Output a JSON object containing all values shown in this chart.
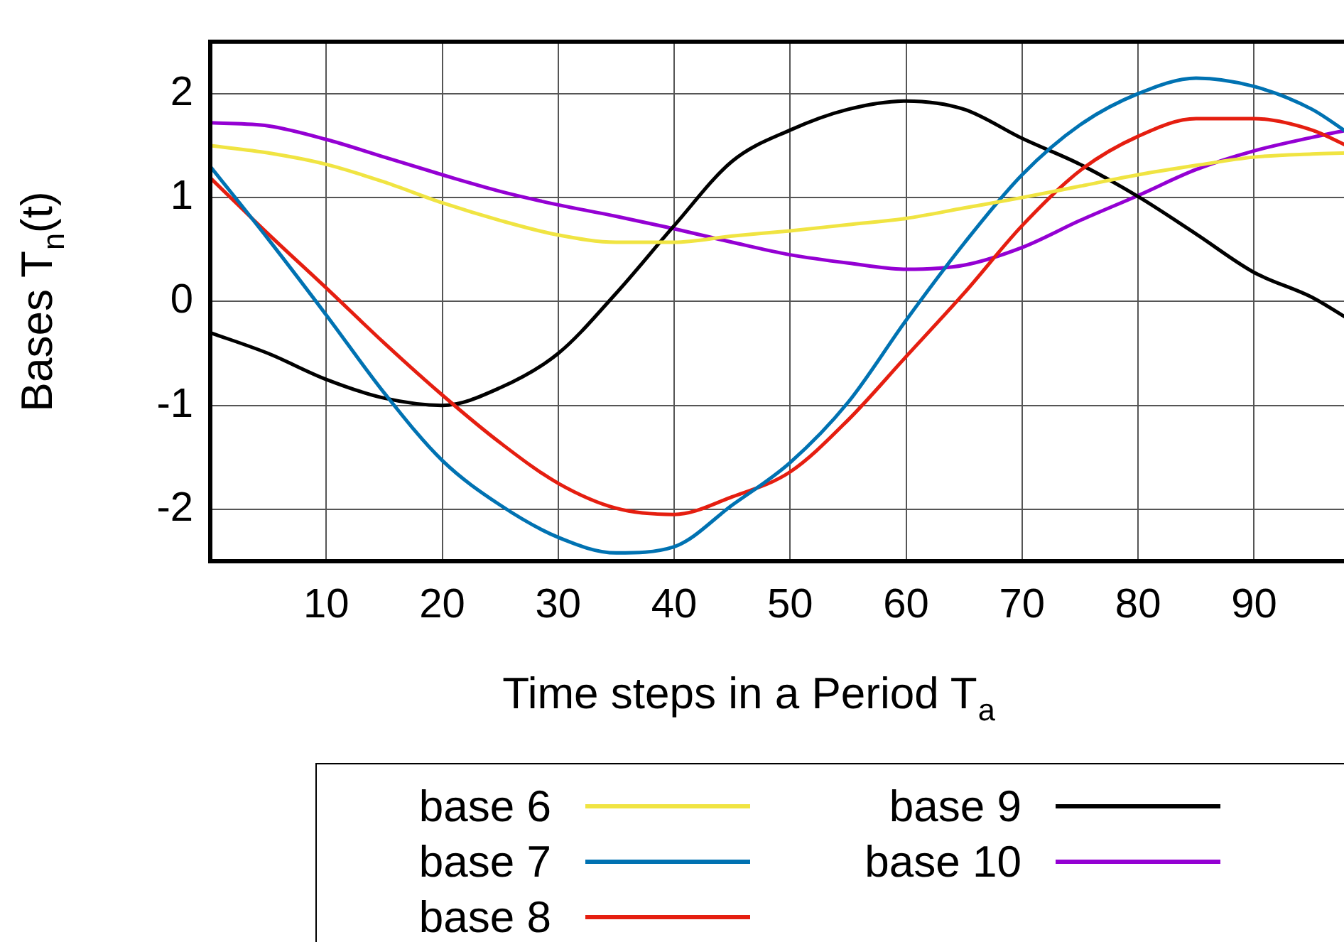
{
  "chart_data": {
    "type": "line",
    "xlabel": "Time steps in a Period T$_{a}$",
    "ylabel": "Bases T$_{n}$(t)",
    "x": [
      0,
      5,
      10,
      15,
      20,
      25,
      30,
      35,
      40,
      45,
      50,
      55,
      60,
      65,
      70,
      75,
      80,
      85,
      90,
      95,
      98
    ],
    "xlim": [
      0,
      98
    ],
    "xticks": [
      10,
      20,
      30,
      40,
      50,
      60,
      70,
      80,
      90
    ],
    "ylim": [
      -2.5,
      2.5
    ],
    "yticks": [
      -2,
      -1,
      0,
      1,
      2
    ],
    "grid": true,
    "legend": "bottom",
    "line_style": "solid",
    "marker": "none",
    "series": [
      {
        "name": "base 6",
        "color": "#f0e442",
        "values": [
          1.5,
          1.43,
          1.32,
          1.15,
          0.95,
          0.78,
          0.64,
          0.57,
          0.57,
          0.63,
          0.68,
          0.74,
          0.8,
          0.9,
          1.0,
          1.11,
          1.22,
          1.31,
          1.39,
          1.42,
          1.43
        ]
      },
      {
        "name": "base 7",
        "color": "#0072b2",
        "values": [
          1.3,
          0.6,
          -0.13,
          -0.88,
          -1.53,
          -1.96,
          -2.27,
          -2.42,
          -2.36,
          -1.96,
          -1.55,
          -0.97,
          -0.18,
          0.56,
          1.22,
          1.7,
          2.0,
          2.15,
          2.07,
          1.85,
          1.63
        ]
      },
      {
        "name": "base 8",
        "color": "#e51e10",
        "values": [
          1.19,
          0.65,
          0.13,
          -0.4,
          -0.9,
          -1.36,
          -1.75,
          -1.99,
          -2.05,
          -1.88,
          -1.64,
          -1.14,
          -0.53,
          0.08,
          0.73,
          1.26,
          1.59,
          1.76,
          1.76,
          1.65,
          1.5
        ]
      },
      {
        "name": "base 9",
        "color": "#000000",
        "values": [
          -0.3,
          -0.5,
          -0.75,
          -0.93,
          -1.0,
          -0.83,
          -0.5,
          0.08,
          0.73,
          1.35,
          1.65,
          1.85,
          1.93,
          1.85,
          1.57,
          1.32,
          1.01,
          0.65,
          0.28,
          0.04,
          -0.16
        ]
      },
      {
        "name": "base 10",
        "color": "#9400d3",
        "values": [
          1.72,
          1.69,
          1.56,
          1.39,
          1.22,
          1.06,
          0.93,
          0.82,
          0.7,
          0.57,
          0.45,
          0.37,
          0.31,
          0.35,
          0.52,
          0.78,
          1.02,
          1.27,
          1.45,
          1.58,
          1.65
        ]
      }
    ]
  }
}
